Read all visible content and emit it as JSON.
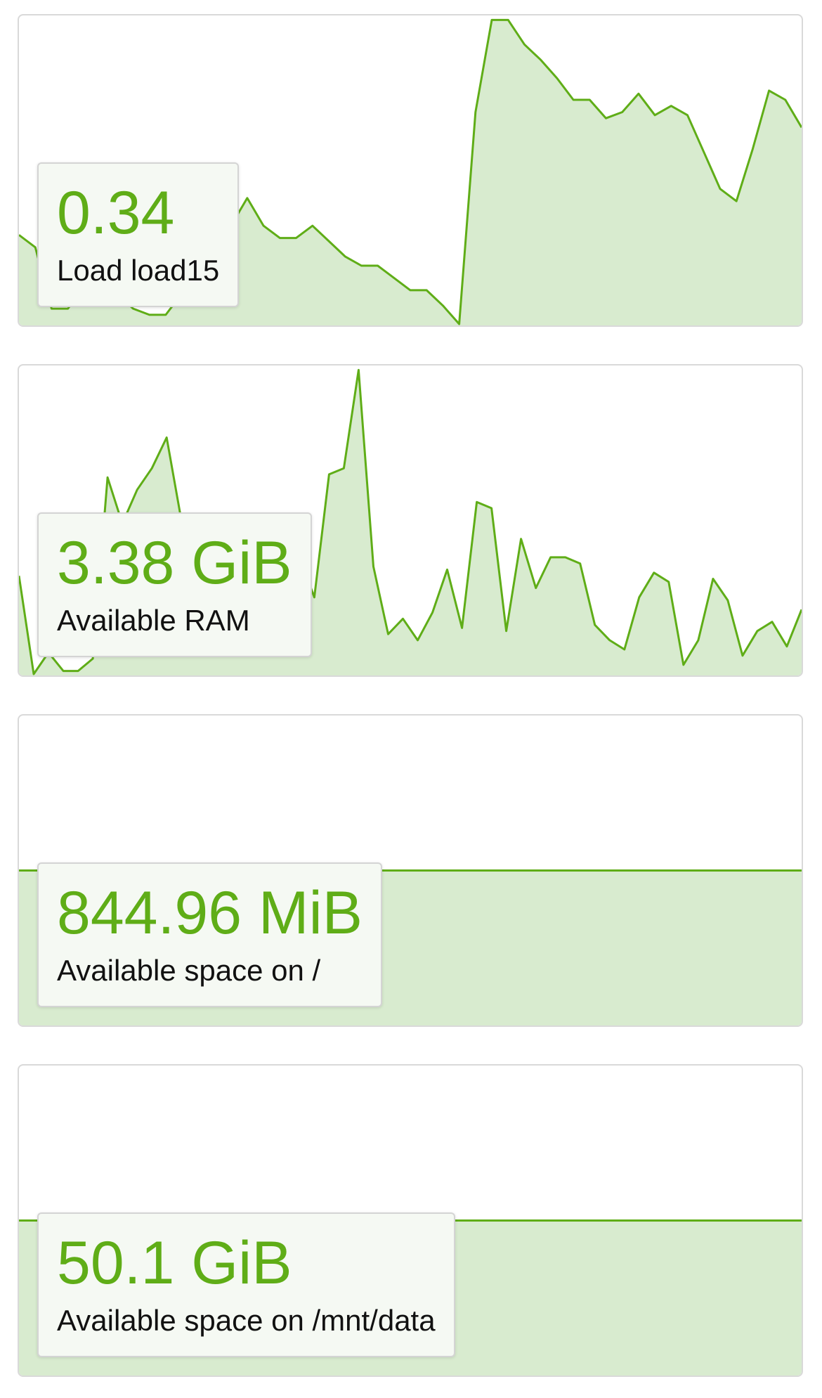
{
  "accent_color": "#5fad17",
  "fill_color": "#d8ebcf",
  "panels": [
    {
      "value": "0.34",
      "label": "Load load15",
      "series": [
        0.29,
        0.25,
        0.05,
        0.05,
        0.12,
        0.12,
        0.1,
        0.05,
        0.03,
        0.03,
        0.1,
        0.15,
        0.27,
        0.32,
        0.41,
        0.32,
        0.28,
        0.28,
        0.32,
        0.27,
        0.22,
        0.19,
        0.19,
        0.15,
        0.11,
        0.11,
        0.06,
        0.0,
        0.69,
        0.99,
        0.99,
        0.91,
        0.86,
        0.8,
        0.73,
        0.73,
        0.67,
        0.69,
        0.75,
        0.68,
        0.71,
        0.68,
        0.56,
        0.44,
        0.4,
        0.57,
        0.76,
        0.73,
        0.64
      ]
    },
    {
      "value": "3.38 GiB",
      "label": "Available RAM",
      "series": [
        0.32,
        0.0,
        0.07,
        0.01,
        0.01,
        0.05,
        0.64,
        0.49,
        0.6,
        0.67,
        0.77,
        0.5,
        0.52,
        0.5,
        0.5,
        0.52,
        0.52,
        0.52,
        0.4,
        0.38,
        0.25,
        0.65,
        0.67,
        0.99,
        0.35,
        0.13,
        0.18,
        0.11,
        0.2,
        0.34,
        0.15,
        0.56,
        0.54,
        0.14,
        0.44,
        0.28,
        0.38,
        0.38,
        0.36,
        0.16,
        0.11,
        0.08,
        0.25,
        0.33,
        0.3,
        0.03,
        0.11,
        0.31,
        0.24,
        0.06,
        0.14,
        0.17,
        0.09,
        0.21
      ]
    },
    {
      "value": "844.96 MiB",
      "label": "Available space on /",
      "series": [
        0.5,
        0.5
      ]
    },
    {
      "value": "50.1 GiB",
      "label": "Available space on /mnt/data",
      "series": [
        0.5,
        0.5
      ]
    }
  ]
}
